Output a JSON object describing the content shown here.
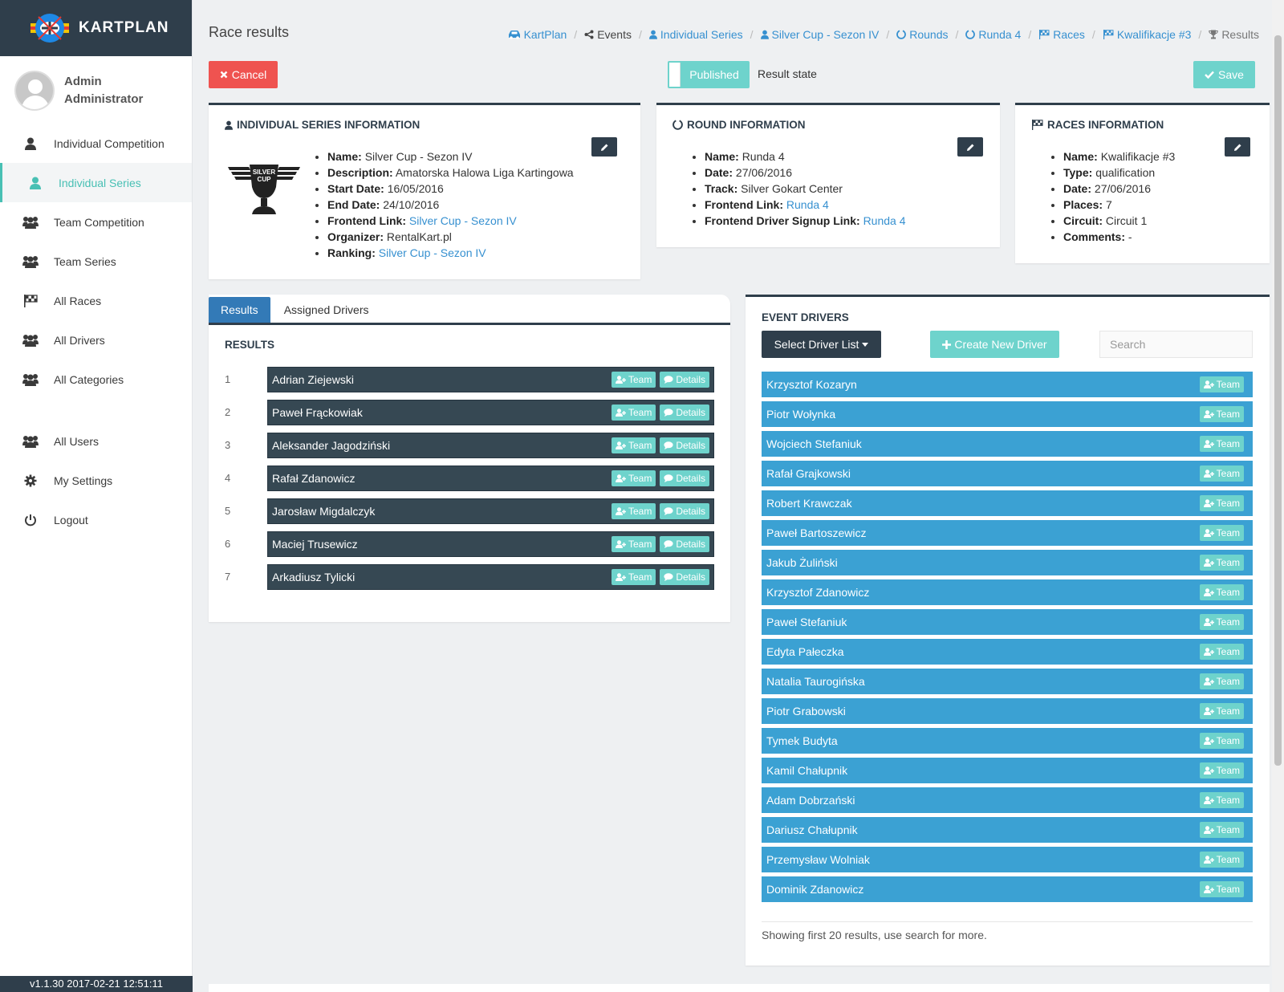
{
  "app": {
    "brand": "KARTPLAN",
    "version": "v1.1.30 2017-02-21 12:51:11"
  },
  "user": {
    "name_line1": "Admin",
    "name_line2": "Administrator"
  },
  "sidebar": {
    "items": [
      {
        "label": "Individual Competition",
        "icon": "user-icon",
        "active": false
      },
      {
        "label": "Individual Series",
        "icon": "user-icon",
        "active": true
      },
      {
        "label": "Team Competition",
        "icon": "users-icon",
        "active": false
      },
      {
        "label": "Team Series",
        "icon": "users-icon",
        "active": false
      },
      {
        "label": "All Races",
        "icon": "checkered-flag-icon",
        "active": false
      },
      {
        "label": "All Drivers",
        "icon": "users-icon",
        "active": false
      },
      {
        "label": "All Categories",
        "icon": "users-icon",
        "active": false
      },
      {
        "label": "All Users",
        "icon": "users-icon",
        "active": false
      },
      {
        "label": "My Settings",
        "icon": "gear-icon",
        "active": false
      },
      {
        "label": "Logout",
        "icon": "power-icon",
        "active": false
      }
    ]
  },
  "header": {
    "title": "Race results",
    "breadcrumb": [
      {
        "label": "KartPlan",
        "icon": "car-icon"
      },
      {
        "label": "Events",
        "icon": "share-icon"
      },
      {
        "label": "Individual Series",
        "icon": "user-icon"
      },
      {
        "label": "Silver Cup - Sezon IV",
        "icon": "user-icon"
      },
      {
        "label": "Rounds",
        "icon": "circle-notch-icon"
      },
      {
        "label": "Runda 4",
        "icon": "circle-notch-icon"
      },
      {
        "label": "Races",
        "icon": "checkered-flag-icon"
      },
      {
        "label": "Kwalifikacje #3",
        "icon": "checkered-flag-icon"
      },
      {
        "label": "Results",
        "icon": "trophy-icon"
      }
    ]
  },
  "toolbar": {
    "cancel_label": "Cancel",
    "save_label": "Save",
    "state_value": "Published",
    "state_label": "Result state"
  },
  "series_info": {
    "title": "Individual Series Information",
    "logo_text_line1": "SILVER",
    "logo_text_line2": "CUP",
    "fields": [
      {
        "key": "Name:",
        "value": "Silver Cup - Sezon IV",
        "link": false
      },
      {
        "key": "Description:",
        "value": "Amatorska Halowa Liga Kartingowa",
        "link": false
      },
      {
        "key": "Start Date:",
        "value": "16/05/2016",
        "link": false
      },
      {
        "key": "End Date:",
        "value": "24/10/2016",
        "link": false
      },
      {
        "key": "Frontend Link:",
        "value": "Silver Cup - Sezon IV",
        "link": true
      },
      {
        "key": "Organizer:",
        "value": "RentalKart.pl",
        "link": false
      },
      {
        "key": "Ranking:",
        "value": "Silver Cup - Sezon IV",
        "link": true
      }
    ]
  },
  "round_info": {
    "title": "Round Information",
    "fields": [
      {
        "key": "Name:",
        "value": "Runda 4",
        "link": false
      },
      {
        "key": "Date:",
        "value": "27/06/2016",
        "link": false
      },
      {
        "key": "Track:",
        "value": "Silver Gokart Center",
        "link": false
      },
      {
        "key": "Frontend Link:",
        "value": "Runda 4",
        "link": true
      },
      {
        "key": "Frontend Driver Signup Link:",
        "value": "Runda 4",
        "link": true
      }
    ]
  },
  "races_info": {
    "title": "Races Information",
    "fields": [
      {
        "key": "Name:",
        "value": "Kwalifikacje #3",
        "link": false
      },
      {
        "key": "Type:",
        "value": "qualification",
        "link": false
      },
      {
        "key": "Date:",
        "value": "27/06/2016",
        "link": false
      },
      {
        "key": "Places:",
        "value": "7",
        "link": false
      },
      {
        "key": "Circuit:",
        "value": "Circuit 1",
        "link": false
      },
      {
        "key": "Comments:",
        "value": "-",
        "link": false
      }
    ]
  },
  "results": {
    "tabs": [
      {
        "label": "Results",
        "active": true
      },
      {
        "label": "Assigned Drivers",
        "active": false
      }
    ],
    "title": "RESULTS",
    "team_label": "Team",
    "details_label": "Details",
    "rows": [
      {
        "place": "1",
        "name": "Adrian Ziejewski"
      },
      {
        "place": "2",
        "name": "Paweł Frąckowiak"
      },
      {
        "place": "3",
        "name": "Aleksander Jagodziński"
      },
      {
        "place": "4",
        "name": "Rafał Zdanowicz"
      },
      {
        "place": "5",
        "name": "Jarosław Migdalczyk"
      },
      {
        "place": "6",
        "name": "Maciej Trusewicz"
      },
      {
        "place": "7",
        "name": "Arkadiusz Tylicki"
      }
    ]
  },
  "drivers": {
    "title": "EVENT DRIVERS",
    "select_list_label": "Select Driver List",
    "create_label": "Create New Driver",
    "search_placeholder": "Search",
    "team_label": "Team",
    "footer": "Showing first 20 results, use search for more.",
    "rows": [
      "Krzysztof Kozaryn",
      "Piotr Wołynka",
      "Wojciech Stefaniuk",
      "Rafał Grajkowski",
      "Robert Krawczak",
      "Paweł Bartoszewicz",
      "Jakub Żuliński",
      "Krzysztof Zdanowicz",
      "Paweł Stefaniuk",
      "Edyta Pałeczka",
      "Natalia Taurogińska",
      "Piotr Grabowski",
      "Tymek Budyta",
      "Kamil Chałupnik",
      "Adam Dobrzański",
      "Dariusz Chałupnik",
      "Przemysław Wolniak",
      "Dominik Zdanowicz"
    ]
  },
  "colors": {
    "sidebar_dark": "#2f3e4b",
    "accent_teal": "#6ed3cc",
    "active_teal": "#48c0b4",
    "danger": "#ef5350",
    "driver_blue": "#3ba1d3",
    "result_dark": "#364853",
    "link_blue": "#3690d0"
  }
}
